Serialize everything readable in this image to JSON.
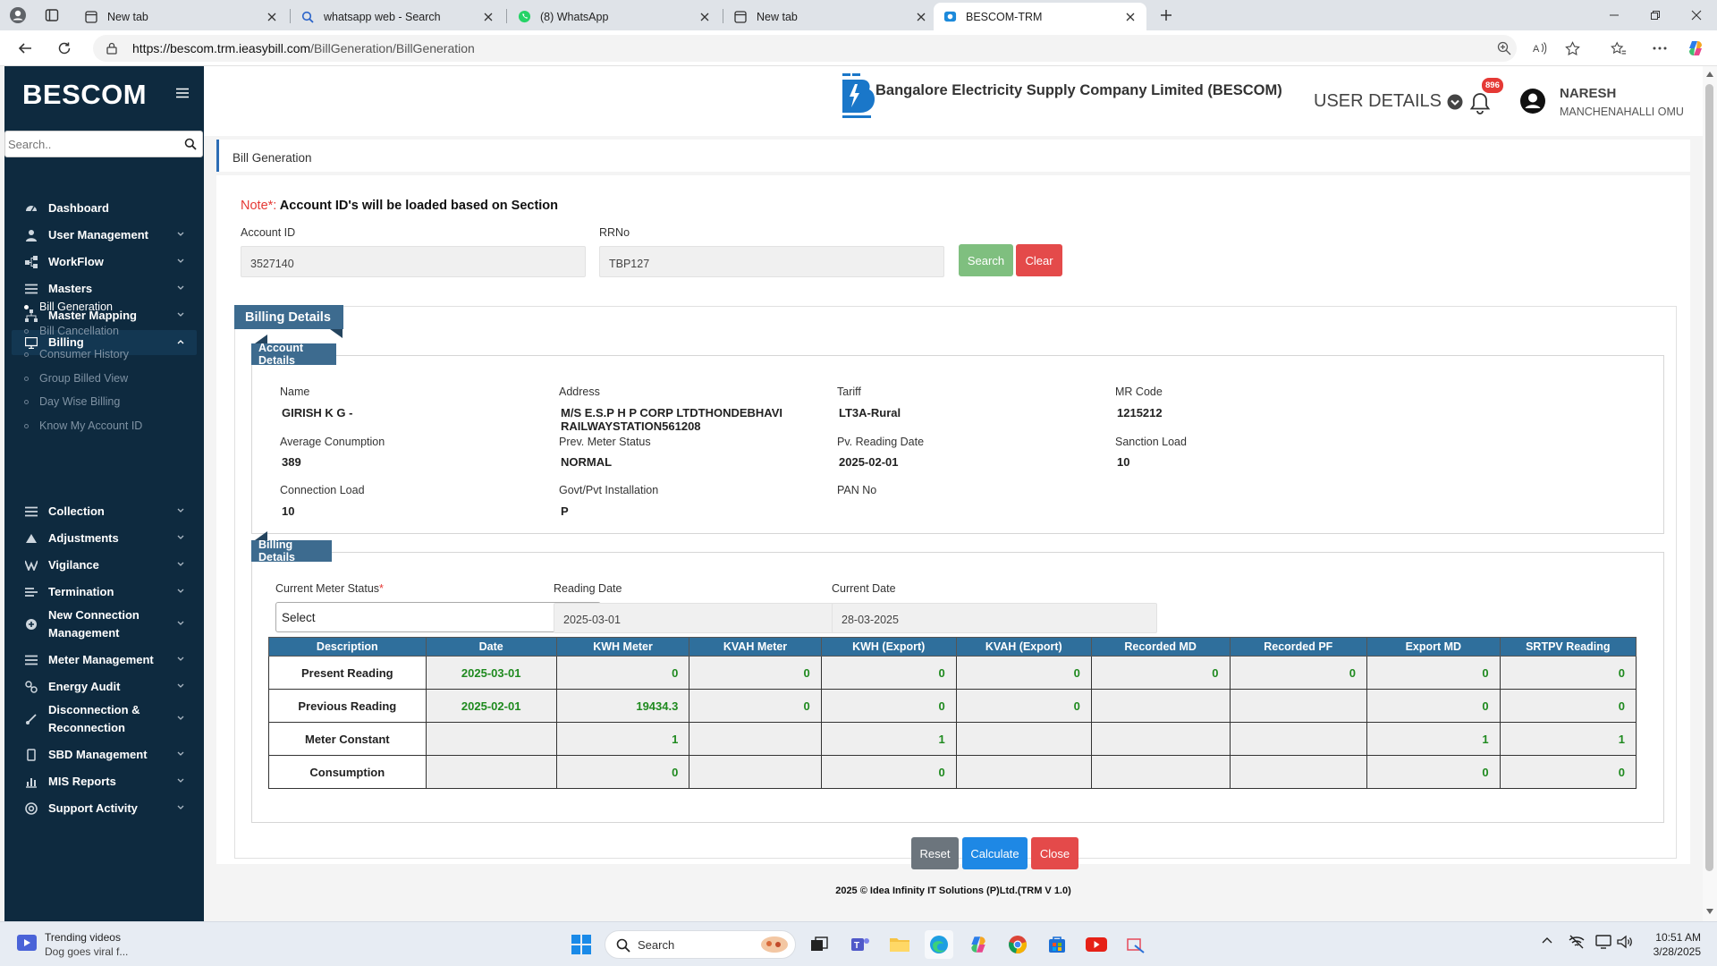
{
  "browser": {
    "tabs": [
      {
        "label": "New tab"
      },
      {
        "label": "whatsapp web - Search"
      },
      {
        "label": "(8) WhatsApp"
      },
      {
        "label": "New tab"
      },
      {
        "label": "BESCOM-TRM"
      }
    ],
    "url_host": "https://bescom.trm.ieasybill.com",
    "url_path": "/BillGeneration/BillGeneration"
  },
  "sidebar": {
    "brand": "BESCOM",
    "search_placeholder": "Search..",
    "menu": [
      {
        "label": "Dashboard",
        "icon": "dashboard-icon"
      },
      {
        "label": "User Management",
        "icon": "user-icon"
      },
      {
        "label": "WorkFlow",
        "icon": "workflow-icon"
      },
      {
        "label": "Masters",
        "icon": "list-icon"
      },
      {
        "label": "Master Mapping",
        "icon": "mapping-icon"
      },
      {
        "label": "Billing",
        "icon": "monitor-icon"
      },
      {
        "label": "Collection",
        "icon": "list-icon"
      },
      {
        "label": "Adjustments",
        "icon": "adjust-icon"
      },
      {
        "label": "Vigilance",
        "icon": "vigilance-icon"
      },
      {
        "label": "Termination",
        "icon": "terminate-icon"
      },
      {
        "label": "New Connection",
        "label2": "Management",
        "icon": "plus-circle-icon"
      },
      {
        "label": "Meter Management",
        "icon": "list-icon"
      },
      {
        "label": "Energy Audit",
        "icon": "audit-icon"
      },
      {
        "label": "Disconnection &",
        "label2": "Reconnection",
        "icon": "link-icon"
      },
      {
        "label": "SBD Management",
        "icon": "device-icon"
      },
      {
        "label": "MIS Reports",
        "icon": "chart-icon"
      },
      {
        "label": "Support Activity",
        "icon": "support-icon"
      }
    ],
    "billing_sub": [
      {
        "label": "Bill Generation"
      },
      {
        "label": "Bill Cancellation"
      },
      {
        "label": "Consumer History"
      },
      {
        "label": "Group Billed View"
      },
      {
        "label": "Day Wise Billing"
      },
      {
        "label": "Know My Account ID"
      }
    ]
  },
  "header": {
    "company": "Bangalore Electricity Supply Company Limited (BESCOM)",
    "user_details": "USER DETAILS",
    "notification_count": "896",
    "user_name": "NARESH",
    "user_location": "MANCHENAHALLI OMU"
  },
  "page": {
    "title": "Bill Generation",
    "note_prefix": "Note*:",
    "note_text": " Account ID's will be loaded based on Section",
    "account_id_label": "Account ID",
    "account_id_value": "3527140",
    "rrno_label": "RRNo",
    "rrno_value": "TBP127",
    "search_btn": "Search",
    "clear_btn": "Clear"
  },
  "billing": {
    "section_title": "Billing Details",
    "account_title": "Account Details",
    "fields": {
      "name_label": "Name",
      "name": "GIRISH K G -",
      "address_label": "Address",
      "address_1": "M/S E.S.P H P CORP LTDTHONDEBHAVI",
      "address_2": "RAILWAYSTATION561208",
      "tariff_label": "Tariff",
      "tariff": "LT3A-Rural",
      "mr_label": "MR Code",
      "mr": "1215212",
      "avg_label": "Average Conumption",
      "avg": "389",
      "prev_status_label": "Prev. Meter Status",
      "prev_status": "NORMAL",
      "pv_date_label": "Pv. Reading Date",
      "pv_date": "2025-02-01",
      "sanction_label": "Sanction Load",
      "sanction": "10",
      "conn_label": "Connection Load",
      "conn": "10",
      "govt_label": "Govt/Pvt Installation",
      "govt": "P",
      "pan_label": "PAN No",
      "pan": ""
    },
    "details_title": "Billing Details",
    "meter_status_label": "Current Meter Status",
    "meter_status_value": "Select",
    "reading_date_label": "Reading Date",
    "reading_date": "2025-03-01",
    "current_date_label": "Current Date",
    "current_date": "28-03-2025",
    "table": {
      "headers": [
        "Description",
        "Date",
        "KWH Meter",
        "KVAH Meter",
        "KWH (Export)",
        "KVAH (Export)",
        "Recorded MD",
        "Recorded PF",
        "Export MD",
        "SRTPV Reading"
      ],
      "rows": [
        [
          "Present Reading",
          "2025-03-01",
          "0",
          "0",
          "0",
          "0",
          "0",
          "0",
          "0",
          "0"
        ],
        [
          "Previous Reading",
          "2025-02-01",
          "19434.3",
          "0",
          "0",
          "0",
          "",
          "",
          "0",
          "0"
        ],
        [
          "Meter Constant",
          "",
          "1",
          "",
          "1",
          "",
          "",
          "",
          "1",
          "1"
        ],
        [
          "Consumption",
          "",
          "0",
          "",
          "0",
          "",
          "",
          "",
          "0",
          "0"
        ]
      ]
    },
    "reset_btn": "Reset",
    "calculate_btn": "Calculate",
    "close_btn": "Close"
  },
  "footer": "2025 © Idea Infinity IT Solutions (P)Ltd.(TRM V 1.0)",
  "taskbar": {
    "news_title": "Trending videos",
    "news_sub": "Dog goes viral f...",
    "search_placeholder": "Search",
    "time": "10:51 AM",
    "date": "3/28/2025"
  },
  "colors": {
    "sidebar": "#0e2a3f",
    "ribbon": "#3d6b8f",
    "table_header": "#2f6f9c",
    "search_btn": "#7fbf7f",
    "clear_btn": "#e44a4a",
    "calc_btn": "#1e88e5"
  }
}
